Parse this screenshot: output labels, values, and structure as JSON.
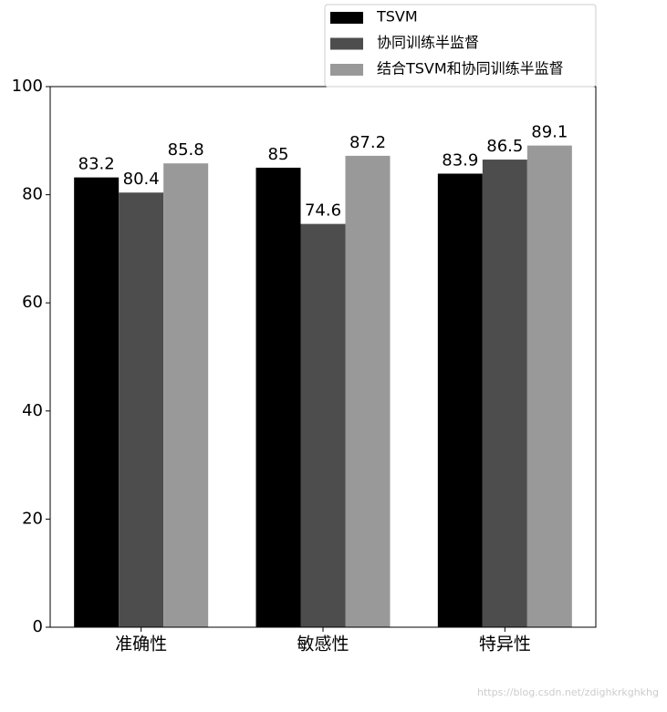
{
  "chart_data": {
    "type": "bar",
    "categories": [
      "准确性",
      "敏感性",
      "特异性"
    ],
    "series": [
      {
        "name": "TSVM",
        "color": "#000000",
        "values": [
          83.2,
          85,
          83.9
        ]
      },
      {
        "name": "协同训练半监督",
        "color": "#4d4d4d",
        "values": [
          80.4,
          74.6,
          86.5
        ]
      },
      {
        "name": "结合TSVM和协同训练半监督",
        "color": "#999999",
        "values": [
          85.8,
          87.2,
          89.1
        ]
      }
    ],
    "ylim": [
      0,
      100
    ],
    "yticks": [
      0,
      20,
      40,
      60,
      80,
      100
    ],
    "grid": false,
    "legend": "upper right",
    "watermark": "https://blog.csdn.net/zdighkrkghkhg"
  }
}
